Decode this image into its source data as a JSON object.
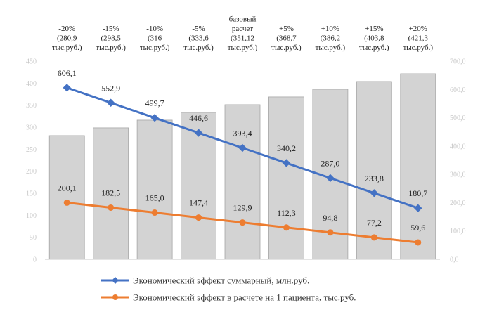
{
  "chart_data": {
    "type": "bar",
    "categories": [
      [
        "-20%",
        "(280,9",
        "тыс.руб.)"
      ],
      [
        "-15%",
        "(298,5",
        "тыс.руб.)"
      ],
      [
        "-10%",
        "(316",
        "тыс.руб.)"
      ],
      [
        "-5%",
        "(333,6",
        "тыс.руб.)"
      ],
      [
        "базовый",
        "расчет",
        "(351,12",
        "тыс.руб.)"
      ],
      [
        "+5%",
        "(368,7",
        "тыс.руб.)"
      ],
      [
        "+10%",
        "(386,2",
        "тыс.руб.)"
      ],
      [
        "+15%",
        "(403,8",
        "тыс.руб.)"
      ],
      [
        "+20%",
        "(421,3",
        "тыс.руб.)"
      ]
    ],
    "bars": {
      "values": [
        280.9,
        298.5,
        316,
        333.6,
        351.12,
        368.7,
        386.2,
        403.8,
        421.3
      ],
      "color": "#d3d3d3",
      "edge": "#a6a6a6"
    },
    "series": [
      {
        "name": "Экономический эффект суммарный, млн.руб.",
        "values": [
          606.1,
          552.9,
          499.7,
          446.6,
          393.4,
          340.2,
          287.0,
          233.8,
          180.7
        ],
        "labels": [
          "606,1",
          "552,9",
          "499,7",
          "446,6",
          "393,4",
          "340,2",
          "287,0",
          "233,8",
          "180,7"
        ],
        "axis": "right",
        "marker": "diamond",
        "color": "#4472c4"
      },
      {
        "name": "Экономический эффект в расчете на 1 пациента, тыс.руб.",
        "values": [
          200.1,
          182.5,
          165.0,
          147.4,
          129.9,
          112.3,
          94.8,
          77.2,
          59.6
        ],
        "labels": [
          "200,1",
          "182,5",
          "165,0",
          "147,4",
          "129,9",
          "112,3",
          "94,8",
          "77,2",
          "59,6"
        ],
        "axis": "right",
        "marker": "circle",
        "color": "#ed7d31"
      }
    ],
    "left_axis": {
      "ylim": [
        0,
        450
      ],
      "ticks": [
        0,
        50,
        100,
        150,
        200,
        250,
        300,
        350,
        400,
        450
      ],
      "tick_labels": [
        "0",
        "50",
        "100",
        "150",
        "200",
        "250",
        "300",
        "350",
        "400",
        "450"
      ]
    },
    "right_axis": {
      "ylim": [
        0,
        700
      ],
      "ticks": [
        0,
        100,
        200,
        300,
        400,
        500,
        600,
        700
      ],
      "tick_labels": [
        "0,0",
        "100,0",
        "200,0",
        "300,0",
        "400,0",
        "500,0",
        "600,0",
        "700,0"
      ]
    },
    "grid": false,
    "legend": "bottom",
    "title": "",
    "xlabel": "",
    "ylabel": ""
  }
}
